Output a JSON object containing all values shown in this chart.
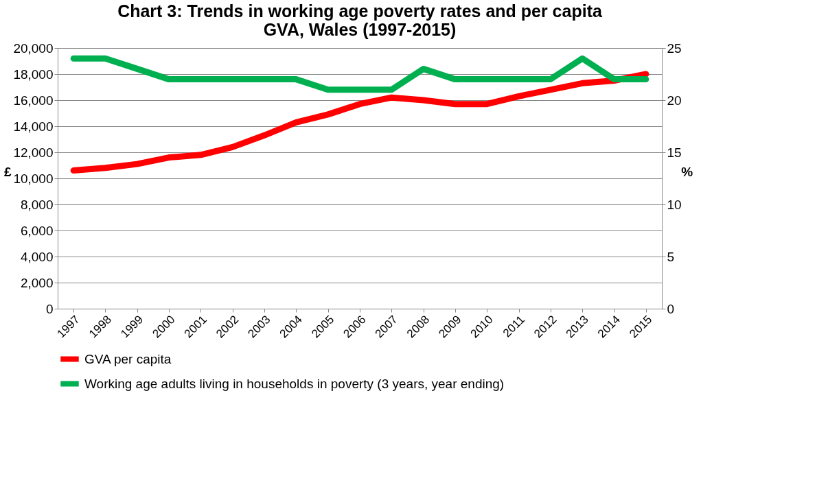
{
  "chart_data": {
    "type": "line",
    "title": "Chart 3: Trends in working age poverty rates and per capita GVA, Wales (1997-2015)",
    "categories": [
      "1997",
      "1998",
      "1999",
      "2000",
      "2001",
      "2002",
      "2003",
      "2004",
      "2005",
      "2006",
      "2007",
      "2008",
      "2009",
      "2010",
      "2011",
      "2012",
      "2013",
      "2014",
      "2015"
    ],
    "series": [
      {
        "name": "GVA per capita",
        "color": "#ff0000",
        "values": [
          10600,
          10800,
          11100,
          11600,
          11800,
          12400,
          13300,
          14300,
          14900,
          15700,
          16200,
          16000,
          15700,
          15700,
          16300,
          16800,
          17300,
          17500,
          18000
        ]
      },
      {
        "name": "Working age adults living in households in poverty (3 years, year ending)",
        "color": "#00b050",
        "axis": "y2",
        "values": [
          24,
          24,
          23,
          22,
          22,
          22,
          22,
          22,
          21,
          21,
          21,
          23,
          22,
          22,
          22,
          22,
          24,
          22,
          22
        ]
      }
    ],
    "ylabel": "£",
    "y2label": "%",
    "ylim": [
      0,
      20000
    ],
    "yticks": [
      {
        "value": 0,
        "label": "0"
      },
      {
        "value": 2000,
        "label": "2,000"
      },
      {
        "value": 4000,
        "label": "4,000"
      },
      {
        "value": 6000,
        "label": "6,000"
      },
      {
        "value": 8000,
        "label": "8,000"
      },
      {
        "value": 10000,
        "label": "10,000"
      },
      {
        "value": 12000,
        "label": "12,000"
      },
      {
        "value": 14000,
        "label": "14,000"
      },
      {
        "value": 16000,
        "label": "16,000"
      },
      {
        "value": 18000,
        "label": "18,000"
      },
      {
        "value": 20000,
        "label": "20,000"
      }
    ],
    "y2lim": [
      0,
      25
    ],
    "y2ticks": [
      0,
      5,
      10,
      15,
      20,
      25
    ],
    "grid": "y",
    "legend": "bottom",
    "marker": "none",
    "line_style": "solid"
  }
}
